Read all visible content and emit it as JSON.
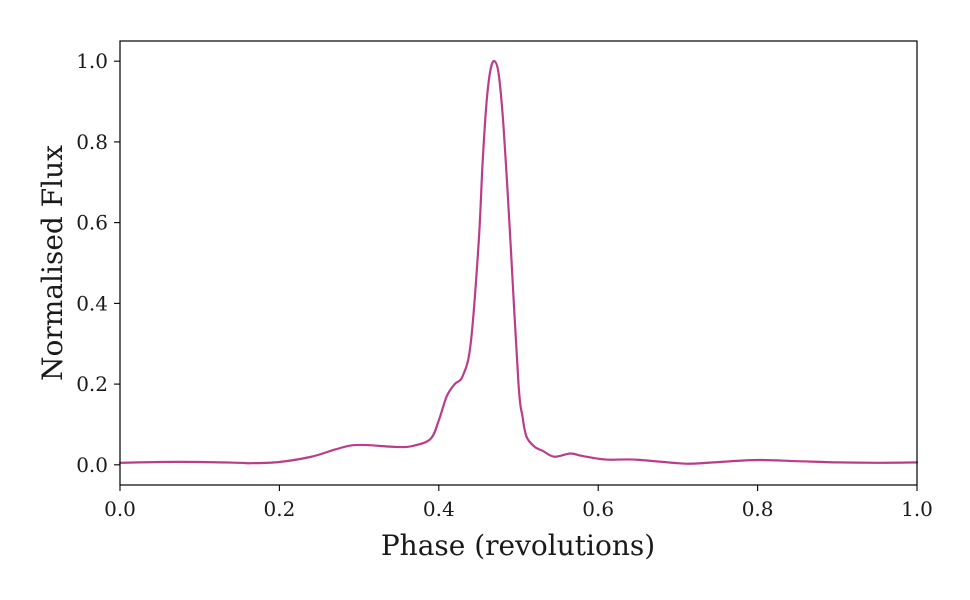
{
  "chart_data": {
    "type": "line",
    "title": "",
    "xlabel": "Phase (revolutions)",
    "ylabel": "Normalised Flux",
    "xlim": [
      0.0,
      1.0
    ],
    "ylim": [
      -0.05,
      1.05
    ],
    "xticks": [
      0.0,
      0.2,
      0.4,
      0.6,
      0.8,
      1.0
    ],
    "xtick_labels": [
      "0.0",
      "0.2",
      "0.4",
      "0.6",
      "0.8",
      "1.0"
    ],
    "yticks": [
      0.0,
      0.2,
      0.4,
      0.6,
      0.8,
      1.0
    ],
    "ytick_labels": [
      "0.0",
      "0.2",
      "0.4",
      "0.6",
      "0.8",
      "1.0"
    ],
    "grid": false,
    "line_color": "#bb3c8a",
    "series": [
      {
        "x": [
          0.0,
          0.05,
          0.1,
          0.15,
          0.165,
          0.2,
          0.24,
          0.27,
          0.29,
          0.31,
          0.35,
          0.37,
          0.39,
          0.4,
          0.41,
          0.42,
          0.43,
          0.44,
          0.45,
          0.455,
          0.46,
          0.465,
          0.47,
          0.475,
          0.48,
          0.485,
          0.49,
          0.5,
          0.505,
          0.51,
          0.52,
          0.53,
          0.545,
          0.565,
          0.58,
          0.61,
          0.645,
          0.7,
          0.72,
          0.76,
          0.8,
          0.85,
          0.9,
          0.95,
          1.0
        ],
        "y": [
          0.005,
          0.007,
          0.007,
          0.005,
          0.004,
          0.007,
          0.02,
          0.038,
          0.048,
          0.049,
          0.044,
          0.048,
          0.065,
          0.11,
          0.17,
          0.2,
          0.22,
          0.3,
          0.55,
          0.75,
          0.9,
          0.98,
          1.0,
          0.97,
          0.87,
          0.72,
          0.55,
          0.2,
          0.12,
          0.07,
          0.045,
          0.035,
          0.02,
          0.028,
          0.022,
          0.013,
          0.013,
          0.004,
          0.003,
          0.008,
          0.012,
          0.009,
          0.006,
          0.005,
          0.006
        ]
      }
    ]
  }
}
